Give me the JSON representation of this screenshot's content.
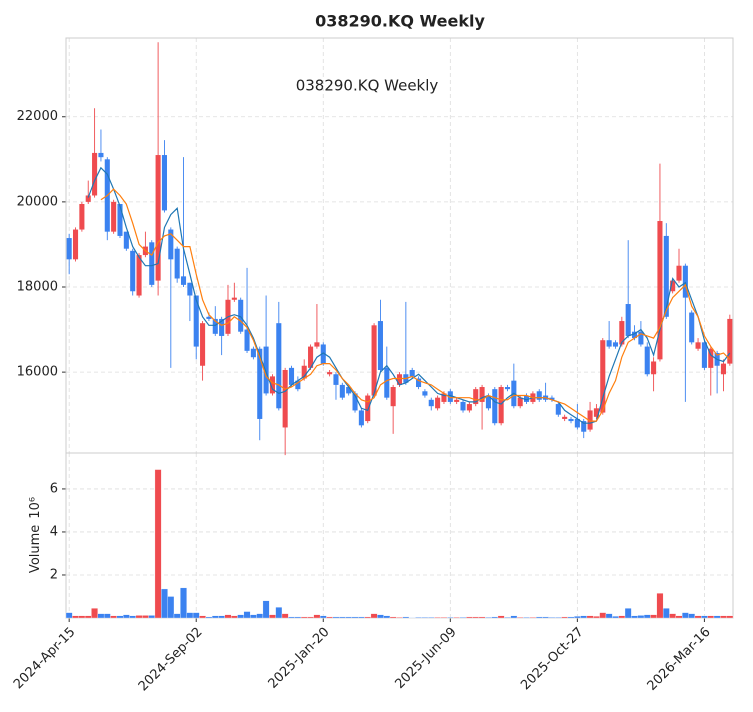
{
  "chart_data": {
    "type": "candlestick",
    "title": "038290.KQ  Weekly",
    "annotation": "038290.KQ  Weekly",
    "volume_label": "Volume",
    "volume_scale_label": "10⁶",
    "up_color": "#ef4b4f",
    "down_color": "#3b82f0",
    "grid": true,
    "xlim": [
      -0.5,
      104.5
    ],
    "xticks": [
      {
        "value": 0,
        "label": "2024-Apr-15"
      },
      {
        "value": 20,
        "label": "2024-Sep-02"
      },
      {
        "value": 40,
        "label": "2025-Jan-20"
      },
      {
        "value": 60,
        "label": "2025-Jun-09"
      },
      {
        "value": 80,
        "label": "2025-Oct-27"
      },
      {
        "value": 100,
        "label": "2026-Mar-16"
      }
    ],
    "ylim": [
      14100,
      23850
    ],
    "yticks": [
      16000,
      18000,
      20000,
      22000
    ],
    "y2lim": [
      0,
      7.67
    ],
    "y2ticks": [
      2,
      4,
      6
    ],
    "open": [
      19150,
      18650,
      19350,
      20000,
      20150,
      21150,
      21000,
      19300,
      19950,
      19300,
      18850,
      17800,
      18750,
      19050,
      18150,
      21100,
      19350,
      18900,
      18250,
      18100,
      17800,
      16150,
      17300,
      17250,
      17250,
      16900,
      17700,
      17700,
      17000,
      16550,
      16550,
      16600,
      15500,
      17150,
      14700,
      16100,
      15800,
      15850,
      16100,
      16600,
      16650,
      15950,
      15950,
      15700,
      15650,
      15500,
      15100,
      14850,
      15450,
      17200,
      16100,
      15200,
      15700,
      15950,
      16050,
      15850,
      15550,
      15350,
      15150,
      15300,
      15550,
      15300,
      15300,
      15100,
      15250,
      15300,
      15450,
      15600,
      14800,
      15650,
      15800,
      15200,
      15450,
      15300,
      15550,
      15450,
      15400,
      15250,
      14900,
      14900,
      14900,
      14850,
      14650,
      14950,
      15050,
      16750,
      16700,
      16650,
      17600,
      16950,
      16950,
      16600,
      15950,
      16300,
      19200,
      17900,
      18150,
      18500,
      17400,
      16550,
      16700,
      16100,
      16450,
      15950,
      16200
    ],
    "high": [
      19250,
      19400,
      20000,
      20500,
      22200,
      21700,
      21050,
      20050,
      19950,
      19300,
      18900,
      18800,
      19300,
      19100,
      23750,
      21450,
      19400,
      18950,
      21050,
      18100,
      17800,
      17200,
      17400,
      17550,
      17300,
      18050,
      18100,
      17750,
      18450,
      16600,
      16600,
      17800,
      15950,
      17650,
      16100,
      16150,
      15900,
      16300,
      16650,
      17600,
      16700,
      16050,
      16000,
      15750,
      15700,
      15550,
      15150,
      15500,
      17150,
      17700,
      16600,
      15700,
      16000,
      17650,
      16100,
      15900,
      15600,
      15400,
      15450,
      15550,
      15600,
      15400,
      15350,
      15300,
      15650,
      15700,
      15500,
      15650,
      15700,
      15700,
      16200,
      15450,
      15500,
      15550,
      15600,
      15750,
      15450,
      15300,
      15000,
      14950,
      15250,
      14900,
      15300,
      15250,
      16800,
      17200,
      16750,
      17300,
      19100,
      17100,
      17200,
      16700,
      16350,
      20900,
      19500,
      18200,
      18900,
      18550,
      17450,
      16800,
      16750,
      16600,
      16500,
      16300,
      17350
    ],
    "low": [
      18300,
      18600,
      19300,
      19950,
      20100,
      20950,
      19100,
      19250,
      19150,
      18850,
      17800,
      17750,
      18700,
      18000,
      17800,
      19750,
      16100,
      18100,
      18000,
      17200,
      16300,
      15800,
      17200,
      16850,
      16400,
      16850,
      17650,
      16900,
      16450,
      16300,
      14400,
      15450,
      15450,
      15100,
      14050,
      15650,
      15550,
      15800,
      16050,
      16550,
      16150,
      15900,
      15350,
      15350,
      15450,
      15050,
      14700,
      14800,
      15400,
      16000,
      15350,
      14550,
      15650,
      15700,
      15850,
      15600,
      15400,
      15100,
      15100,
      15250,
      15250,
      15250,
      15050,
      15050,
      15200,
      14650,
      15100,
      14750,
      14750,
      15550,
      15150,
      15150,
      15250,
      15250,
      15300,
      15300,
      15300,
      14950,
      14850,
      14800,
      14650,
      14450,
      14600,
      14900,
      15000,
      16550,
      16550,
      16600,
      16800,
      16750,
      16600,
      15900,
      15550,
      16250,
      17250,
      17850,
      18100,
      15300,
      16650,
      16500,
      16050,
      15450,
      15500,
      15550,
      16150
    ],
    "close": [
      18650,
      19350,
      19950,
      20150,
      21150,
      21050,
      19300,
      20000,
      19200,
      18900,
      17900,
      18750,
      18950,
      18050,
      21100,
      19800,
      18650,
      18200,
      18050,
      17800,
      16600,
      17150,
      17250,
      16900,
      16850,
      17700,
      17750,
      16950,
      16500,
      16350,
      14900,
      15500,
      15900,
      15150,
      16050,
      15700,
      15600,
      16150,
      16600,
      16700,
      16200,
      16000,
      15700,
      15400,
      15500,
      15100,
      14750,
      15450,
      17100,
      16050,
      15400,
      15650,
      15950,
      15750,
      15900,
      15650,
      15450,
      15200,
      15400,
      15500,
      15300,
      15350,
      15100,
      15250,
      15600,
      15650,
      15150,
      14800,
      15650,
      15600,
      15200,
      15400,
      15300,
      15500,
      15350,
      15350,
      15350,
      15000,
      14950,
      14850,
      14700,
      14600,
      15100,
      15150,
      16750,
      16600,
      16600,
      17200,
      16850,
      16800,
      16650,
      15950,
      16250,
      19550,
      17300,
      18150,
      18500,
      17750,
      16700,
      16700,
      16100,
      16550,
      16150,
      16200,
      17250
    ],
    "volume": [
      0.25,
      0.1,
      0.1,
      0.1,
      0.45,
      0.2,
      0.2,
      0.1,
      0.1,
      0.15,
      0.1,
      0.12,
      0.12,
      0.12,
      6.9,
      1.35,
      1.0,
      0.2,
      1.4,
      0.25,
      0.25,
      0.1,
      0.05,
      0.1,
      0.1,
      0.15,
      0.1,
      0.15,
      0.3,
      0.15,
      0.2,
      0.8,
      0.15,
      0.5,
      0.2,
      0.05,
      0.05,
      0.05,
      0.05,
      0.15,
      0.1,
      0.05,
      0.05,
      0.05,
      0.05,
      0.05,
      0.05,
      0.05,
      0.2,
      0.15,
      0.1,
      0.05,
      0.03,
      0.05,
      0.02,
      0.03,
      0.03,
      0.03,
      0.03,
      0.03,
      0.03,
      0.03,
      0.03,
      0.05,
      0.05,
      0.05,
      0.03,
      0.05,
      0.1,
      0.03,
      0.1,
      0.03,
      0.03,
      0.03,
      0.05,
      0.05,
      0.03,
      0.03,
      0.05,
      0.05,
      0.08,
      0.1,
      0.1,
      0.08,
      0.25,
      0.2,
      0.08,
      0.1,
      0.45,
      0.1,
      0.12,
      0.15,
      0.15,
      1.15,
      0.45,
      0.2,
      0.1,
      0.25,
      0.2,
      0.1,
      0.1,
      0.1,
      0.1,
      0.1,
      0.1
    ],
    "moving_averages": [
      {
        "color": "#1f77b4",
        "values": [
          null,
          null,
          null,
          20100,
          20500,
          20800,
          20650,
          20300,
          19900,
          19400,
          18950,
          18700,
          18500,
          18500,
          18550,
          19400,
          19700,
          19850,
          18900,
          18300,
          17700,
          17300,
          17100,
          17100,
          17200,
          17300,
          17350,
          17300,
          17100,
          16800,
          16400,
          16000,
          15600,
          15500,
          15550,
          15700,
          15800,
          15900,
          16100,
          16350,
          16450,
          16350,
          16100,
          15850,
          15650,
          15450,
          15150,
          15100,
          15500,
          16000,
          16150,
          15950,
          15700,
          15750,
          15850,
          15950,
          15800,
          15650,
          15500,
          15450,
          15450,
          15400,
          15350,
          15300,
          15300,
          15400,
          15450,
          15300,
          15250,
          15400,
          15500,
          15400,
          15350,
          15400,
          15400,
          15400,
          15350,
          15300,
          15100,
          15000,
          14900,
          14800,
          14800,
          14850,
          15400,
          15900,
          16300,
          16700,
          16850,
          16900,
          17000,
          16800,
          16400,
          17000,
          17500,
          18200,
          18000,
          18100,
          17700,
          17300,
          16750,
          16400,
          16300,
          16250,
          16450
        ]
      },
      {
        "color": "#ff7f0e",
        "values": [
          null,
          null,
          null,
          null,
          null,
          20050,
          20150,
          20300,
          20150,
          19950,
          19500,
          19000,
          18850,
          18750,
          19050,
          19200,
          19250,
          19100,
          18950,
          18950,
          18300,
          17700,
          17350,
          17200,
          17100,
          17150,
          17300,
          17200,
          17050,
          16750,
          16350,
          15900,
          15750,
          15700,
          15600,
          15650,
          15750,
          15850,
          15950,
          16150,
          16200,
          16200,
          16050,
          15850,
          15700,
          15500,
          15350,
          15300,
          15400,
          15700,
          15800,
          15850,
          15850,
          15850,
          15900,
          15800,
          15750,
          15700,
          15600,
          15500,
          15400,
          15400,
          15400,
          15400,
          15350,
          15350,
          15450,
          15400,
          15350,
          15350,
          15450,
          15450,
          15450,
          15400,
          15400,
          15400,
          15350,
          15300,
          15250,
          15150,
          15050,
          14950,
          14850,
          14850,
          15100,
          15500,
          15800,
          16350,
          16700,
          16800,
          16900,
          16850,
          16800,
          17050,
          17450,
          17750,
          17900,
          18050,
          17550,
          17300,
          16850,
          16600,
          16400,
          16450,
          16300
        ]
      }
    ]
  }
}
